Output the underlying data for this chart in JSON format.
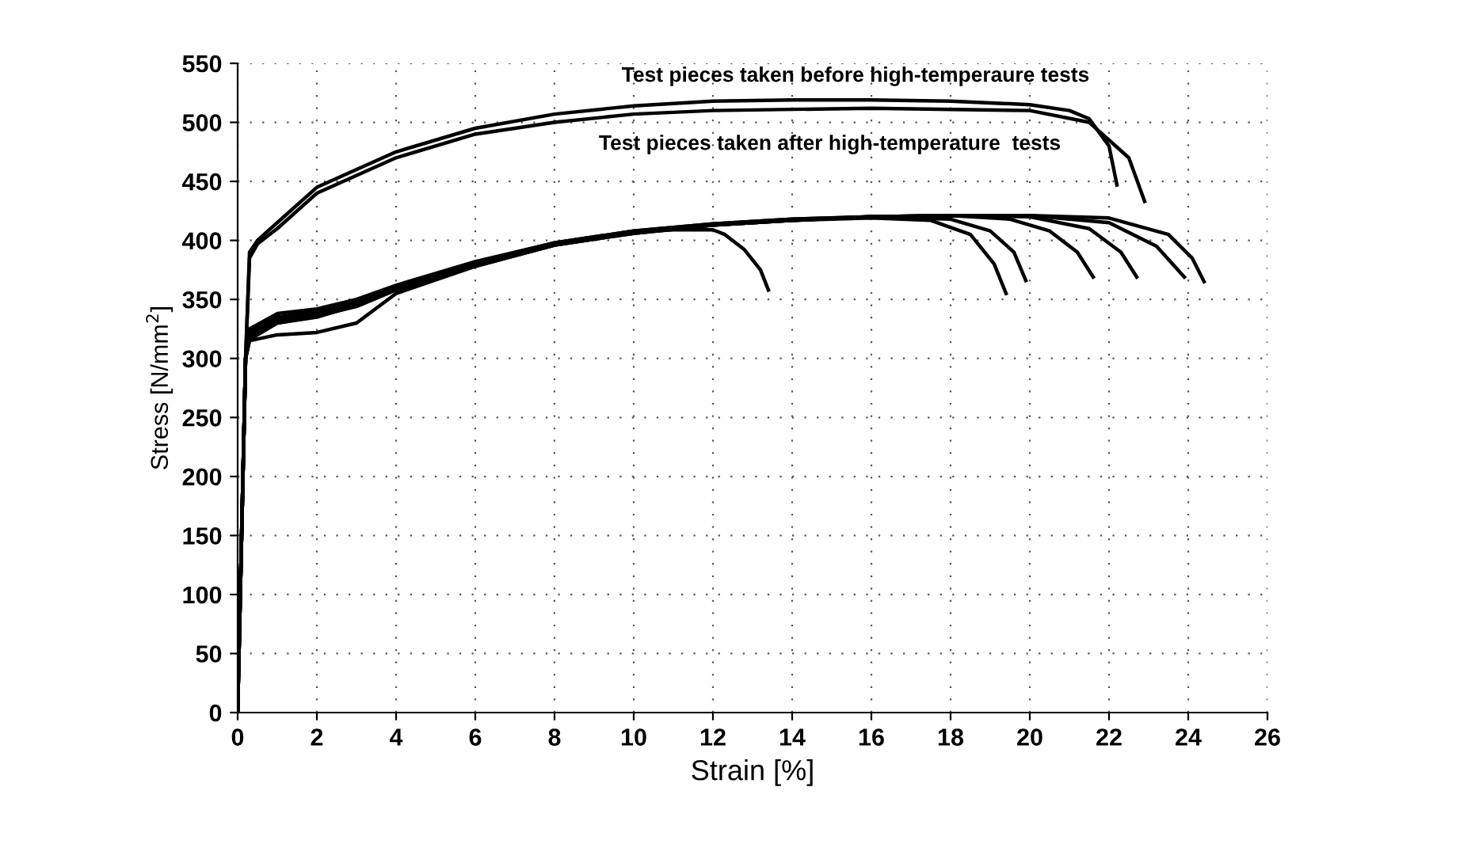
{
  "chart_data": {
    "type": "line",
    "xlabel": "Strain [%]",
    "ylabel": "Stress [N/mm$^{2}$]",
    "xlim": [
      0,
      26
    ],
    "xticks": [
      0,
      2,
      4,
      6,
      8,
      10,
      12,
      14,
      16,
      18,
      20,
      22,
      24,
      26
    ],
    "ylim": [
      0,
      550
    ],
    "yticks": [
      0,
      50,
      100,
      150,
      200,
      250,
      300,
      350,
      400,
      450,
      500,
      550
    ],
    "grid": true,
    "legend": false,
    "marker": "none",
    "line_style": "solid",
    "annotations": [
      "Test pieces taken before high-temperaure tests",
      "Test pieces taken after high-temperature  tests"
    ],
    "series": [
      {
        "color": "#000000",
        "x": [
          0,
          0.2,
          0.3,
          0.5,
          1,
          2,
          4,
          6,
          8,
          10,
          12,
          14,
          16,
          18,
          20,
          21,
          21.5,
          22,
          22.2
        ],
        "values": [
          0,
          300,
          390,
          400,
          415,
          445,
          475,
          495,
          507,
          514,
          518,
          519,
          519,
          518,
          515,
          510,
          503,
          480,
          447
        ]
      },
      {
        "color": "#000000",
        "x": [
          0,
          0.2,
          0.3,
          0.5,
          1,
          2,
          4,
          6,
          8,
          10,
          12,
          16,
          20,
          21.5,
          22.5,
          22.9
        ],
        "values": [
          0,
          300,
          385,
          397,
          410,
          440,
          470,
          490,
          500,
          507,
          510,
          512,
          510,
          500,
          470,
          433
        ]
      },
      {
        "color": "#000000",
        "x": [
          0,
          0.2,
          0.3,
          1,
          2,
          3,
          4,
          6,
          8,
          10,
          11,
          12,
          12.3,
          12.8,
          13.2,
          13.4
        ],
        "values": [
          0,
          300,
          318,
          330,
          335,
          345,
          360,
          380,
          397,
          407,
          409,
          409,
          405,
          392,
          375,
          358
        ]
      },
      {
        "color": "#000000",
        "x": [
          0,
          0.2,
          0.3,
          1,
          2,
          3,
          4,
          6,
          8,
          10,
          12,
          14,
          16,
          17.5,
          18.5,
          19.1,
          19.4
        ],
        "values": [
          0,
          300,
          315,
          320,
          322,
          330,
          355,
          378,
          396,
          406,
          413,
          417,
          419,
          417,
          405,
          380,
          355
        ]
      },
      {
        "color": "#000000",
        "x": [
          0,
          0.2,
          0.3,
          1,
          2,
          3,
          4,
          6,
          8,
          10,
          12,
          14,
          16,
          18,
          19,
          19.6,
          19.9
        ],
        "values": [
          0,
          300,
          325,
          338,
          342,
          350,
          362,
          382,
          398,
          408,
          414,
          418,
          420,
          418,
          408,
          390,
          366
        ]
      },
      {
        "color": "#000000",
        "x": [
          0,
          0.2,
          0.3,
          1,
          2,
          3,
          4,
          6,
          8,
          10,
          12,
          14,
          16,
          18,
          19.5,
          20.5,
          21.2,
          21.6
        ],
        "values": [
          0,
          300,
          322,
          335,
          340,
          348,
          361,
          381,
          398,
          408,
          414,
          418,
          420,
          421,
          418,
          408,
          390,
          369
        ]
      },
      {
        "color": "#000000",
        "x": [
          0,
          0.2,
          0.3,
          1,
          2,
          3,
          4,
          6,
          8,
          10,
          12,
          14,
          16,
          18,
          20,
          21.5,
          22.3,
          22.7
        ],
        "values": [
          0,
          300,
          320,
          333,
          338,
          346,
          360,
          380,
          397,
          407,
          413,
          417,
          420,
          421,
          420,
          410,
          390,
          369
        ]
      },
      {
        "color": "#000000",
        "x": [
          0,
          0.2,
          0.3,
          1,
          2,
          3,
          4,
          6,
          8,
          10,
          12,
          14,
          16,
          18,
          20,
          22,
          23.2,
          23.9
        ],
        "values": [
          0,
          300,
          318,
          332,
          337,
          345,
          359,
          379,
          396,
          407,
          413,
          417,
          420,
          421,
          421,
          415,
          395,
          369
        ]
      },
      {
        "color": "#000000",
        "x": [
          0,
          0.2,
          0.3,
          1,
          2,
          3,
          4,
          6,
          8,
          10,
          12,
          14,
          16,
          18,
          20,
          22,
          23.5,
          24.1,
          24.4
        ],
        "values": [
          0,
          300,
          316,
          330,
          336,
          344,
          358,
          378,
          396,
          406,
          413,
          417,
          420,
          421,
          421,
          419,
          405,
          385,
          365
        ]
      }
    ]
  }
}
